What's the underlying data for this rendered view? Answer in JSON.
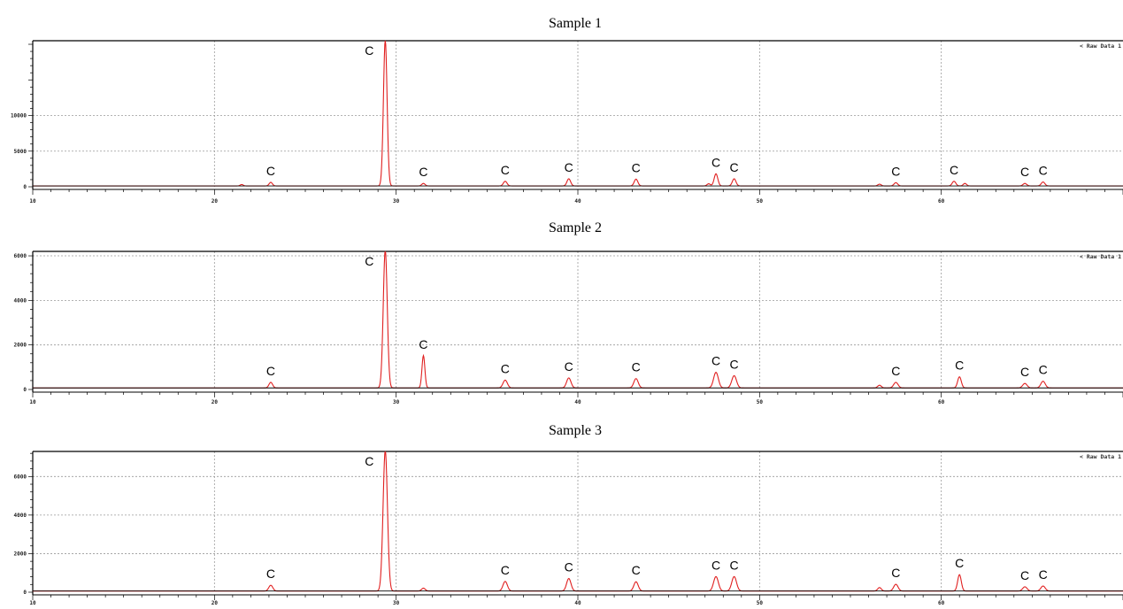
{
  "chart_data": [
    {
      "type": "line",
      "title": "Sample 1",
      "legend": "< Raw Data 1",
      "legend_position": "top-right",
      "grid": true,
      "xlim": [
        10,
        70
      ],
      "ylim": [
        0,
        20500
      ],
      "x_ticks": [
        10,
        20,
        30,
        40,
        50,
        60
      ],
      "y_ticks": [
        0,
        5000,
        10000
      ],
      "baseline": 120,
      "peaks": [
        {
          "x": 21.5,
          "y": 200,
          "w": 0.08,
          "label": ""
        },
        {
          "x": 23.1,
          "y": 500,
          "w": 0.09,
          "label": "C"
        },
        {
          "x": 29.4,
          "y": 20500,
          "w": 0.1,
          "label": "C"
        },
        {
          "x": 31.5,
          "y": 350,
          "w": 0.09,
          "label": "C"
        },
        {
          "x": 36.0,
          "y": 650,
          "w": 0.1,
          "label": "C"
        },
        {
          "x": 39.5,
          "y": 1000,
          "w": 0.1,
          "label": "C"
        },
        {
          "x": 43.2,
          "y": 950,
          "w": 0.1,
          "label": "C"
        },
        {
          "x": 47.2,
          "y": 300,
          "w": 0.09,
          "label": ""
        },
        {
          "x": 47.6,
          "y": 1700,
          "w": 0.1,
          "label": "C"
        },
        {
          "x": 48.6,
          "y": 1000,
          "w": 0.1,
          "label": "C"
        },
        {
          "x": 56.6,
          "y": 250,
          "w": 0.09,
          "label": ""
        },
        {
          "x": 57.5,
          "y": 450,
          "w": 0.1,
          "label": "C"
        },
        {
          "x": 60.7,
          "y": 650,
          "w": 0.1,
          "label": "C"
        },
        {
          "x": 61.3,
          "y": 350,
          "w": 0.09,
          "label": ""
        },
        {
          "x": 64.6,
          "y": 350,
          "w": 0.1,
          "label": "C"
        },
        {
          "x": 65.6,
          "y": 550,
          "w": 0.1,
          "label": "C"
        }
      ]
    },
    {
      "type": "line",
      "title": "Sample 2",
      "legend": "< Raw Data 1",
      "legend_position": "top-right",
      "grid": true,
      "xlim": [
        10,
        70
      ],
      "ylim": [
        0,
        6200
      ],
      "x_ticks": [
        10,
        20,
        30,
        40,
        50,
        60
      ],
      "y_ticks": [
        0,
        2000,
        4000,
        6000
      ],
      "baseline": 70,
      "peaks": [
        {
          "x": 23.1,
          "y": 250,
          "w": 0.1,
          "label": "C"
        },
        {
          "x": 29.4,
          "y": 6200,
          "w": 0.11,
          "label": "C"
        },
        {
          "x": 31.5,
          "y": 1450,
          "w": 0.08,
          "label": "C"
        },
        {
          "x": 36.0,
          "y": 350,
          "w": 0.12,
          "label": "C"
        },
        {
          "x": 39.5,
          "y": 450,
          "w": 0.12,
          "label": "C"
        },
        {
          "x": 43.2,
          "y": 420,
          "w": 0.12,
          "label": "C"
        },
        {
          "x": 47.6,
          "y": 700,
          "w": 0.13,
          "label": "C"
        },
        {
          "x": 48.6,
          "y": 550,
          "w": 0.13,
          "label": "C"
        },
        {
          "x": 56.6,
          "y": 120,
          "w": 0.1,
          "label": ""
        },
        {
          "x": 57.5,
          "y": 250,
          "w": 0.12,
          "label": "C"
        },
        {
          "x": 61.0,
          "y": 500,
          "w": 0.1,
          "label": "C"
        },
        {
          "x": 64.6,
          "y": 200,
          "w": 0.12,
          "label": "C"
        },
        {
          "x": 65.6,
          "y": 300,
          "w": 0.12,
          "label": "C"
        }
      ]
    },
    {
      "type": "line",
      "title": "Sample 3",
      "legend": "< Raw Data 1",
      "legend_position": "top-right",
      "grid": true,
      "xlim": [
        10,
        70
      ],
      "ylim": [
        0,
        7300
      ],
      "x_ticks": [
        10,
        20,
        30,
        40,
        50,
        60
      ],
      "y_ticks": [
        0,
        2000,
        4000,
        6000
      ],
      "baseline": 60,
      "peaks": [
        {
          "x": 23.1,
          "y": 300,
          "w": 0.11,
          "label": "C"
        },
        {
          "x": 29.4,
          "y": 7300,
          "w": 0.12,
          "label": "C"
        },
        {
          "x": 31.5,
          "y": 150,
          "w": 0.1,
          "label": ""
        },
        {
          "x": 36.0,
          "y": 500,
          "w": 0.12,
          "label": "C"
        },
        {
          "x": 39.5,
          "y": 650,
          "w": 0.12,
          "label": "C"
        },
        {
          "x": 43.2,
          "y": 480,
          "w": 0.12,
          "label": "C"
        },
        {
          "x": 47.6,
          "y": 750,
          "w": 0.13,
          "label": "C"
        },
        {
          "x": 48.6,
          "y": 750,
          "w": 0.13,
          "label": "C"
        },
        {
          "x": 56.6,
          "y": 180,
          "w": 0.1,
          "label": ""
        },
        {
          "x": 57.5,
          "y": 350,
          "w": 0.12,
          "label": "C"
        },
        {
          "x": 61.0,
          "y": 850,
          "w": 0.1,
          "label": "C"
        },
        {
          "x": 64.6,
          "y": 220,
          "w": 0.12,
          "label": "C"
        },
        {
          "x": 65.6,
          "y": 260,
          "w": 0.12,
          "label": "C"
        }
      ]
    }
  ],
  "style": {
    "trace_color": "#e02020",
    "baseline_color": "#000000",
    "frame_color": "#000000",
    "grid_color": "#9a9a9a",
    "background": "#ffffff"
  }
}
